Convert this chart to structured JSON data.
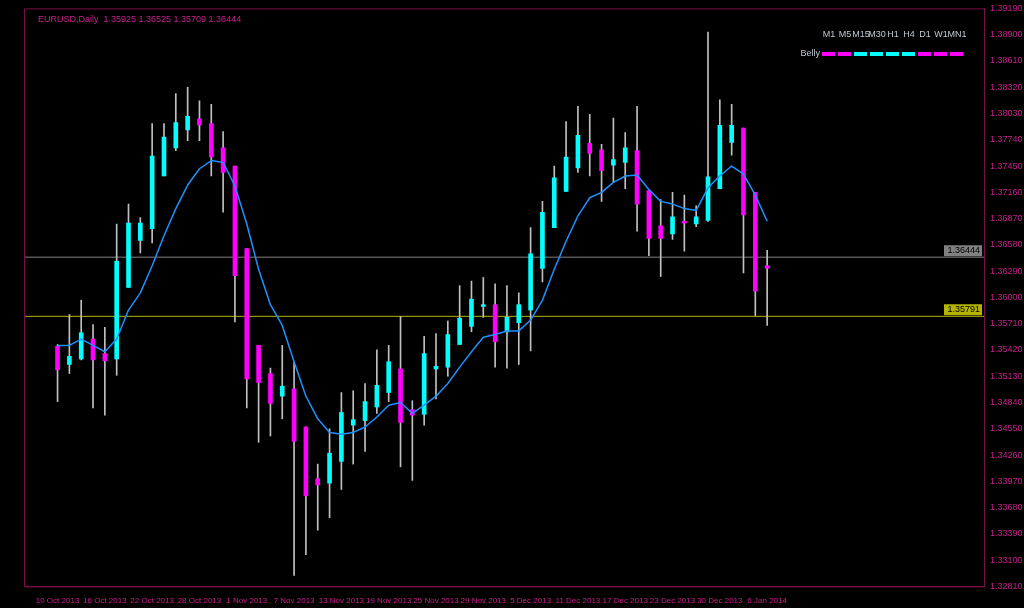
{
  "chart_data": {
    "type": "candlestick",
    "title": "EURUSD,Daily  1.35925 1.36525 1.35709 1.36444",
    "categories": [
      "10 Oct 2013",
      null,
      null,
      null,
      "16 Oct 2013",
      null,
      null,
      null,
      "22 Oct 2013",
      null,
      null,
      null,
      "28 Oct 2013",
      null,
      null,
      null,
      "1 Nov 2013",
      null,
      null,
      null,
      "7 Nov 2013",
      null,
      null,
      null,
      "13 Nov 2013",
      null,
      null,
      null,
      "19 Nov 2013",
      null,
      null,
      null,
      "25 Nov 2013",
      null,
      null,
      null,
      "29 Nov 2013",
      null,
      null,
      null,
      "5 Dec 2013",
      null,
      null,
      null,
      "11 Dec 2013",
      null,
      null,
      null,
      "17 Dec 2013",
      null,
      null,
      null,
      "23 Dec 2013",
      null,
      null,
      null,
      "30 Dec 2013",
      null,
      null,
      null,
      "6 Jan 2014"
    ],
    "ohlc": [
      [
        1.3546,
        1.3548,
        1.3485,
        1.352
      ],
      [
        1.3526,
        1.3581,
        1.3516,
        1.3535
      ],
      [
        1.3532,
        1.3597,
        1.3531,
        1.3561
      ],
      [
        1.3554,
        1.357,
        1.3478,
        1.3531
      ],
      [
        1.3538,
        1.3567,
        1.347,
        1.353
      ],
      [
        1.3532,
        1.3681,
        1.3514,
        1.364
      ],
      [
        1.3611,
        1.3703,
        1.3611,
        1.3682
      ],
      [
        1.3663,
        1.3688,
        1.3649,
        1.3682
      ],
      [
        1.3676,
        1.3792,
        1.366,
        1.3756
      ],
      [
        1.3734,
        1.3792,
        1.3734,
        1.3777
      ],
      [
        1.3765,
        1.3825,
        1.3762,
        1.3793
      ],
      [
        1.3785,
        1.3832,
        1.3773,
        1.38
      ],
      [
        1.3797,
        1.3817,
        1.3773,
        1.379
      ],
      [
        1.3792,
        1.3813,
        1.3734,
        1.3755
      ],
      [
        1.3765,
        1.3783,
        1.3694,
        1.3738
      ],
      [
        1.3745,
        1.3745,
        1.3573,
        1.3624
      ],
      [
        1.3654,
        1.3654,
        1.3478,
        1.351
      ],
      [
        1.3547,
        1.3547,
        1.344,
        1.3506
      ],
      [
        1.3516,
        1.3522,
        1.3447,
        1.3483
      ],
      [
        1.3491,
        1.3547,
        1.3466,
        1.3502
      ],
      [
        1.3499,
        1.3528,
        1.3293,
        1.3441
      ],
      [
        1.3457,
        1.3457,
        1.3316,
        1.3381
      ],
      [
        1.34,
        1.3416,
        1.3343,
        1.3393
      ],
      [
        1.3395,
        1.3455,
        1.3357,
        1.3428
      ],
      [
        1.3419,
        1.3495,
        1.3388,
        1.3473
      ],
      [
        1.3459,
        1.3497,
        1.3416,
        1.3465
      ],
      [
        1.3464,
        1.3505,
        1.343,
        1.3485
      ],
      [
        1.3479,
        1.3542,
        1.3472,
        1.3503
      ],
      [
        1.3495,
        1.3547,
        1.3485,
        1.3529
      ],
      [
        1.3521,
        1.3579,
        1.3413,
        1.3462
      ],
      [
        1.3476,
        1.3486,
        1.3398,
        1.347
      ],
      [
        1.3471,
        1.3557,
        1.3459,
        1.3538
      ],
      [
        1.3521,
        1.356,
        1.3488,
        1.3524
      ],
      [
        1.3523,
        1.3574,
        1.3513,
        1.3559
      ],
      [
        1.3548,
        1.3613,
        1.3548,
        1.3577
      ],
      [
        1.3568,
        1.3618,
        1.3562,
        1.3598
      ],
      [
        1.359,
        1.3622,
        1.3578,
        1.3592
      ],
      [
        1.3592,
        1.3615,
        1.3523,
        1.3551
      ],
      [
        1.3562,
        1.3613,
        1.3522,
        1.3578
      ],
      [
        1.3572,
        1.3605,
        1.3526,
        1.3592
      ],
      [
        1.3586,
        1.3677,
        1.3541,
        1.3648
      ],
      [
        1.3632,
        1.3706,
        1.3617,
        1.3694
      ],
      [
        1.3677,
        1.3745,
        1.3677,
        1.3732
      ],
      [
        1.3717,
        1.3794,
        1.3717,
        1.3755
      ],
      [
        1.3743,
        1.3811,
        1.3738,
        1.3779
      ],
      [
        1.377,
        1.3802,
        1.3734,
        1.3759
      ],
      [
        1.3763,
        1.3769,
        1.3706,
        1.374
      ],
      [
        1.3746,
        1.3798,
        1.3727,
        1.3752
      ],
      [
        1.3749,
        1.3782,
        1.372,
        1.3765
      ],
      [
        1.3762,
        1.3811,
        1.3673,
        1.3703
      ],
      [
        1.3718,
        1.3718,
        1.3646,
        1.3665
      ],
      [
        1.3679,
        1.3708,
        1.3623,
        1.3665
      ],
      [
        1.367,
        1.3716,
        1.3664,
        1.3689
      ],
      [
        1.3684,
        1.3713,
        1.3651,
        1.3682
      ],
      [
        1.3681,
        1.3701,
        1.3678,
        1.3689
      ],
      [
        1.3685,
        1.3893,
        1.3684,
        1.3733
      ],
      [
        1.372,
        1.3818,
        1.372,
        1.379
      ],
      [
        1.3771,
        1.3813,
        1.3757,
        1.379
      ],
      [
        1.3787,
        1.3787,
        1.3627,
        1.3691
      ],
      [
        1.3716,
        1.3716,
        1.358,
        1.3607
      ],
      [
        1.3635,
        1.3652,
        1.3569,
        1.3632
      ]
    ],
    "color": "#c0c0c0",
    "colors": [
      "#ff00ff",
      "#00ffff",
      "#00ffff",
      "#ff00ff",
      "#ff00ff",
      "#00ffff",
      "#00ffff",
      "#00ffff",
      "#00ffff",
      "#00ffff",
      "#00ffff",
      "#00ffff",
      "#ff00ff",
      "#ff00ff",
      "#ff00ff",
      "#ff00ff",
      "#ff00ff",
      "#ff00ff",
      "#ff00ff",
      "#00ffff",
      "#ff00ff",
      "#ff00ff",
      "#ff00ff",
      "#00ffff",
      "#00ffff",
      "#00ffff",
      "#00ffff",
      "#00ffff",
      "#00ffff",
      "#ff00ff",
      "#ff00ff",
      "#00ffff",
      "#00ffff",
      "#00ffff",
      "#00ffff",
      "#00ffff",
      "#00ffff",
      "#ff00ff",
      "#00ffff",
      "#00ffff",
      "#00ffff",
      "#00ffff",
      "#00ffff",
      "#00ffff",
      "#00ffff",
      "#ff00ff",
      "#ff00ff",
      "#00ffff",
      "#00ffff",
      "#ff00ff",
      "#ff00ff",
      "#ff00ff",
      "#00ffff",
      "#ff00ff",
      "#00ffff",
      "#00ffff",
      "#00ffff",
      "#00ffff",
      "#ff00ff",
      "#ff00ff",
      "#ff00ff"
    ],
    "series": [
      {
        "type": "line",
        "color": "#1e90ff",
        "values": [
          1.3547,
          1.3547,
          1.3554,
          1.3547,
          1.354,
          1.3554,
          1.3586,
          1.3605,
          1.3635,
          1.3668,
          1.3698,
          1.3724,
          1.3742,
          1.3751,
          1.3749,
          1.3723,
          1.3681,
          1.3631,
          1.3592,
          1.3569,
          1.3529,
          1.3491,
          1.3466,
          1.3451,
          1.3449,
          1.3451,
          1.3457,
          1.3468,
          1.3481,
          1.3484,
          1.3472,
          1.3481,
          1.3491,
          1.3505,
          1.3523,
          1.354,
          1.3556,
          1.3559,
          1.3563,
          1.3563,
          1.3575,
          1.3597,
          1.3631,
          1.3662,
          1.369,
          1.371,
          1.3716,
          1.3727,
          1.3734,
          1.3735,
          1.3719,
          1.3706,
          1.3703,
          1.3698,
          1.3696,
          1.3721,
          1.3734,
          1.3745,
          1.3736,
          1.3713,
          1.3684
        ]
      }
    ],
    "ylim": [
      1.3281,
      1.3919
    ],
    "yticks": [
      {
        "value": 1.3919,
        "label": "1.39190"
      },
      {
        "value": 1.389,
        "label": "1.38900"
      },
      {
        "value": 1.3861,
        "label": "1.38610"
      },
      {
        "value": 1.3832,
        "label": "1.38320"
      },
      {
        "value": 1.3803,
        "label": "1.38030"
      },
      {
        "value": 1.3774,
        "label": "1.37740"
      },
      {
        "value": 1.3745,
        "label": "1.37450"
      },
      {
        "value": 1.3716,
        "label": "1.37160"
      },
      {
        "value": 1.3687,
        "label": "1.36870"
      },
      {
        "value": 1.3658,
        "label": "1.36580"
      },
      {
        "value": 1.3629,
        "label": "1.36290"
      },
      {
        "value": 1.36,
        "label": "1.36000"
      },
      {
        "value": 1.3571,
        "label": "1.35710"
      },
      {
        "value": 1.3542,
        "label": "1.35420"
      },
      {
        "value": 1.3513,
        "label": "1.35130"
      },
      {
        "value": 1.3484,
        "label": "1.34840"
      },
      {
        "value": 1.3455,
        "label": "1.34550"
      },
      {
        "value": 1.3426,
        "label": "1.34260"
      },
      {
        "value": 1.3397,
        "label": "1.33970"
      },
      {
        "value": 1.3368,
        "label": "1.33680"
      },
      {
        "value": 1.3339,
        "label": "1.33390"
      },
      {
        "value": 1.331,
        "label": "1.33100"
      },
      {
        "value": 1.3281,
        "label": "1.32810"
      }
    ],
    "ref_lines": [
      {
        "axis": "y",
        "value": 1.36444,
        "label": "1.36444",
        "color": "#808080"
      },
      {
        "axis": "y",
        "value": 1.35791,
        "label": "1.35791",
        "color": "#b4b400"
      }
    ],
    "annotations": [
      "M1",
      "M5",
      "M15",
      "M30",
      "H1",
      "H4",
      "D1",
      "W1",
      "MN1",
      "Belly"
    ],
    "grid": false,
    "legend": false
  }
}
